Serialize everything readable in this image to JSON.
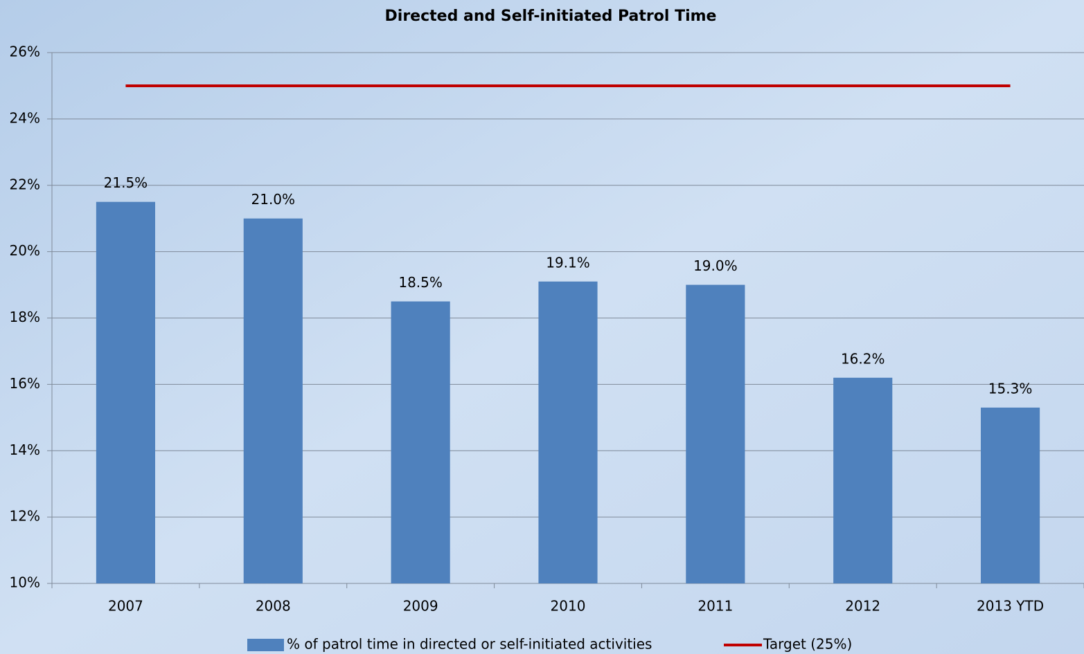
{
  "chart_data": {
    "type": "bar",
    "title": "Directed and Self-initiated Patrol Time",
    "categories": [
      "2007",
      "2008",
      "2009",
      "2010",
      "2011",
      "2012",
      "2013 YTD"
    ],
    "series": [
      {
        "name": "% of patrol time in directed or self-initiated activities",
        "type": "bar",
        "color": "#4f81bd",
        "values": [
          21.5,
          21.0,
          18.5,
          19.1,
          19.0,
          16.2,
          15.3
        ],
        "value_labels": [
          "21.5%",
          "21.0%",
          "18.5%",
          "19.1%",
          "19.0%",
          "16.2%",
          "15.3%"
        ]
      },
      {
        "name": "Target (25%)",
        "type": "line",
        "color": "#c00000",
        "values": [
          25,
          25,
          25,
          25,
          25,
          25,
          25
        ]
      }
    ],
    "ylim": [
      10,
      26
    ],
    "yticks": [
      {
        "value": 10,
        "label": "10%"
      },
      {
        "value": 12,
        "label": "12%"
      },
      {
        "value": 14,
        "label": "14%"
      },
      {
        "value": 16,
        "label": "16%"
      },
      {
        "value": 18,
        "label": "18%"
      },
      {
        "value": 20,
        "label": "20%"
      },
      {
        "value": 22,
        "label": "22%"
      },
      {
        "value": 24,
        "label": "24%"
      },
      {
        "value": 26,
        "label": "26%"
      }
    ],
    "grid": true,
    "legend": "bottom"
  }
}
